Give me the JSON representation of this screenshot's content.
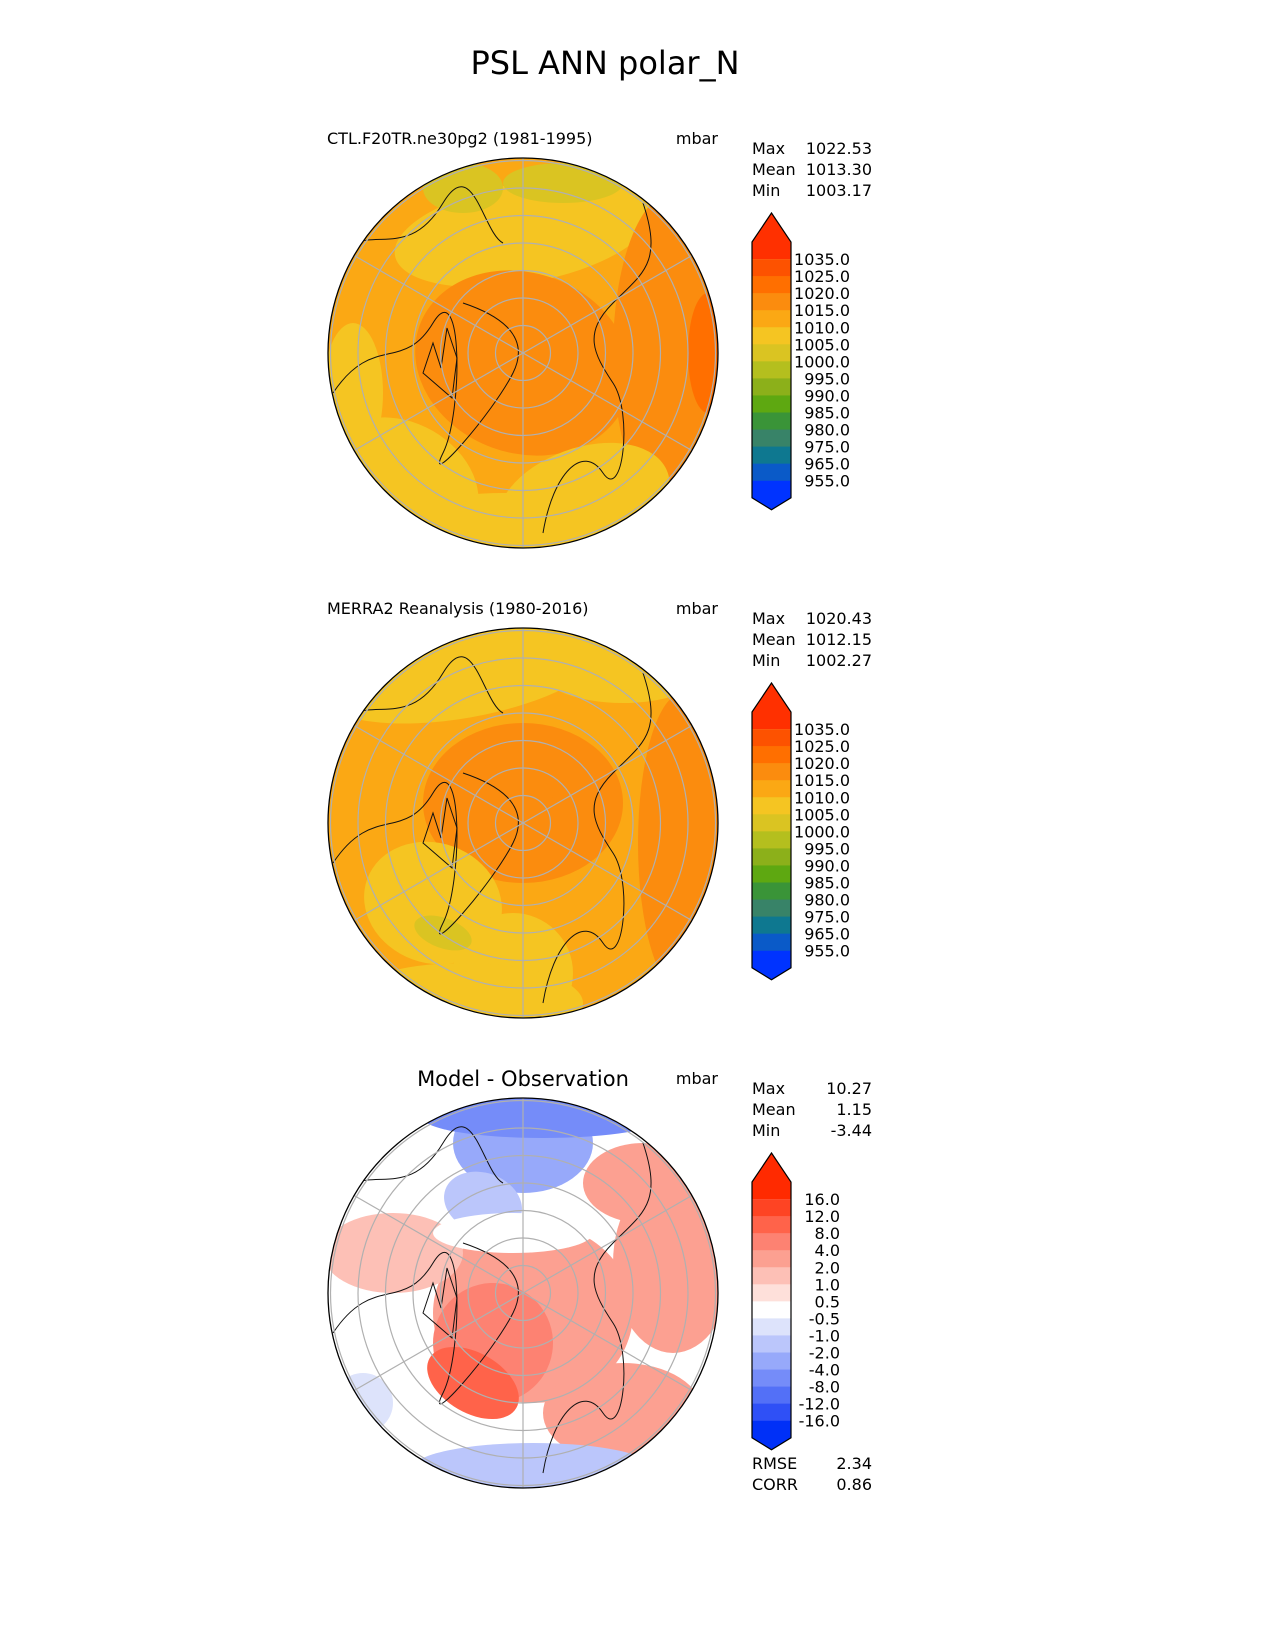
{
  "title": "PSL ANN polar_N",
  "chart_data": [
    {
      "type": "heatmap",
      "projection": "north-polar-stereographic",
      "subtitle": "CTL.F20TR.ne30pg2 (1981-1995)",
      "units": "mbar",
      "stats": [
        {
          "label": "Max",
          "value": "1022.53"
        },
        {
          "label": "Mean",
          "value": "1013.30"
        },
        {
          "label": "Min",
          "value": "1003.17"
        }
      ],
      "colorbar": {
        "levels": [
          "1035.0",
          "1025.0",
          "1020.0",
          "1015.0",
          "1010.0",
          "1005.0",
          "1000.0",
          "995.0",
          "990.0",
          "985.0",
          "980.0",
          "975.0",
          "965.0",
          "955.0"
        ],
        "colors": [
          "#ff3000",
          "#fd5200",
          "#ff6f00",
          "#fb8c0e",
          "#fba814",
          "#f5c522",
          "#dac422",
          "#b4bf1e",
          "#8cb01a",
          "#5ea811",
          "#3a9438",
          "#388368",
          "#0e7890",
          "#0a5ac8",
          "#0033ff"
        ],
        "extend": "both"
      },
      "base_color": "#fba814",
      "field": "sea level pressure"
    },
    {
      "type": "heatmap",
      "projection": "north-polar-stereographic",
      "subtitle": "MERRA2 Reanalysis (1980-2016)",
      "units": "mbar",
      "stats": [
        {
          "label": "Max",
          "value": "1020.43"
        },
        {
          "label": "Mean",
          "value": "1012.15"
        },
        {
          "label": "Min",
          "value": "1002.27"
        }
      ],
      "colorbar": {
        "levels": [
          "1035.0",
          "1025.0",
          "1020.0",
          "1015.0",
          "1010.0",
          "1005.0",
          "1000.0",
          "995.0",
          "990.0",
          "985.0",
          "980.0",
          "975.0",
          "965.0",
          "955.0"
        ],
        "colors": [
          "#ff3000",
          "#fd5200",
          "#ff6f00",
          "#fb8c0e",
          "#fba814",
          "#f5c522",
          "#dac422",
          "#b4bf1e",
          "#8cb01a",
          "#5ea811",
          "#3a9438",
          "#388368",
          "#0e7890",
          "#0a5ac8",
          "#0033ff"
        ],
        "extend": "both"
      },
      "base_color": "#fba814",
      "field": "sea level pressure"
    },
    {
      "type": "heatmap",
      "projection": "north-polar-stereographic",
      "subtitle": "Model - Observation",
      "units": "mbar",
      "stats": [
        {
          "label": "Max",
          "value": "10.27"
        },
        {
          "label": "Mean",
          "value": "1.15"
        },
        {
          "label": "Min",
          "value": "-3.44"
        }
      ],
      "colorbar": {
        "levels": [
          "16.0",
          "12.0",
          "8.0",
          "4.0",
          "2.0",
          "1.0",
          "0.5",
          "-0.5",
          "-1.0",
          "-2.0",
          "-4.0",
          "-8.0",
          "-12.0",
          "-16.0"
        ],
        "colors": [
          "#ff2a00",
          "#fe4423",
          "#ff634a",
          "#fd8272",
          "#fca091",
          "#fdc0b6",
          "#fee0da",
          "#ffffff",
          "#dde3fb",
          "#bbc6fb",
          "#97a9fa",
          "#758cf9",
          "#5370f7",
          "#2f50f6",
          "#0030f7"
        ],
        "extend": "both"
      },
      "base_color": "#fee0da",
      "metrics": [
        {
          "label": "RMSE",
          "value": "2.34"
        },
        {
          "label": "CORR",
          "value": "0.86"
        }
      ]
    }
  ]
}
